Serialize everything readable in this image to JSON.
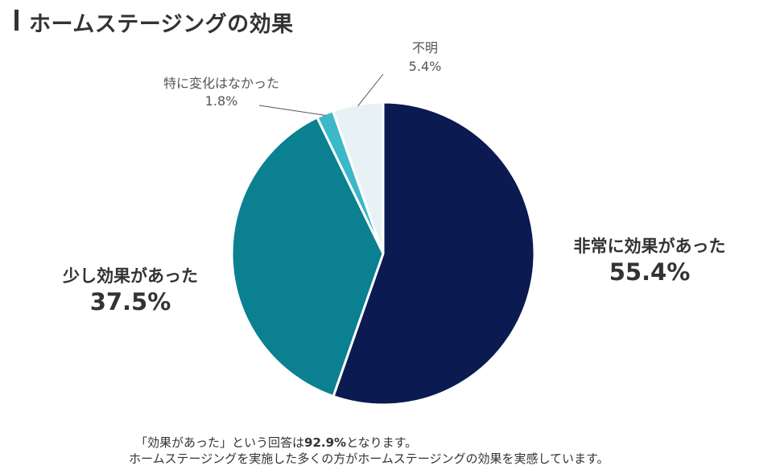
{
  "title": "ホームステージングの効果",
  "chart_data": {
    "type": "pie",
    "title": "ホームステージングの効果",
    "slices": [
      {
        "label": "非常に効果があった",
        "value": 55.4,
        "value_label": "55.4%",
        "color": "#0b1a50"
      },
      {
        "label": "少し効果があった",
        "value": 37.5,
        "value_label": "37.5%",
        "color": "#0a8090"
      },
      {
        "label": "特に変化はなかった",
        "value": 1.8,
        "value_label": "1.8%",
        "color": "#3cb8c8"
      },
      {
        "label": "不明",
        "value": 5.4,
        "value_label": "5.4%",
        "color": "#e8f2f5"
      }
    ],
    "start_angle": "12 o'clock",
    "direction": "clockwise"
  },
  "footnote": {
    "line1_prefix": "「効果があった」という回答は",
    "line1_value": "92.9%",
    "line1_suffix": "となります。",
    "line2": "ホームステージングを実施した多くの方がホームステージングの効果を実感しています。"
  }
}
